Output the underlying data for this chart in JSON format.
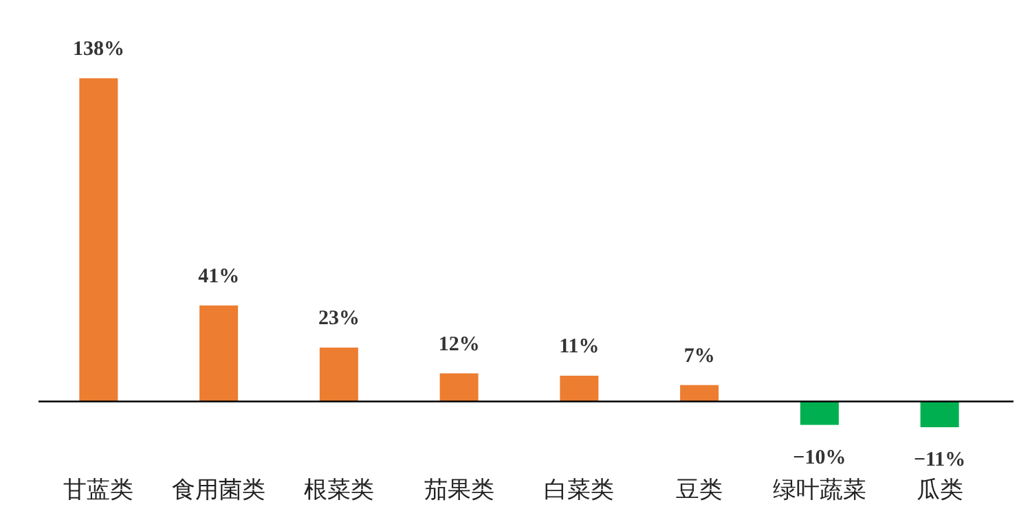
{
  "chart_data": {
    "type": "bar",
    "categories": [
      "甘蓝类",
      "食用菌类",
      "根菜类",
      "茄果类",
      "白菜类",
      "豆类",
      "绿叶蔬菜",
      "瓜类"
    ],
    "values": [
      138,
      41,
      23,
      12,
      11,
      7,
      -10,
      -11
    ],
    "colors": [
      "#ed7d31",
      "#ed7d31",
      "#ed7d31",
      "#ed7d31",
      "#ed7d31",
      "#ed7d31",
      "#00b050",
      "#00b050"
    ],
    "value_labels": [
      "138%",
      "41%",
      "23%",
      "12%",
      "11%",
      "7%",
      "−10%",
      "−11%"
    ]
  }
}
